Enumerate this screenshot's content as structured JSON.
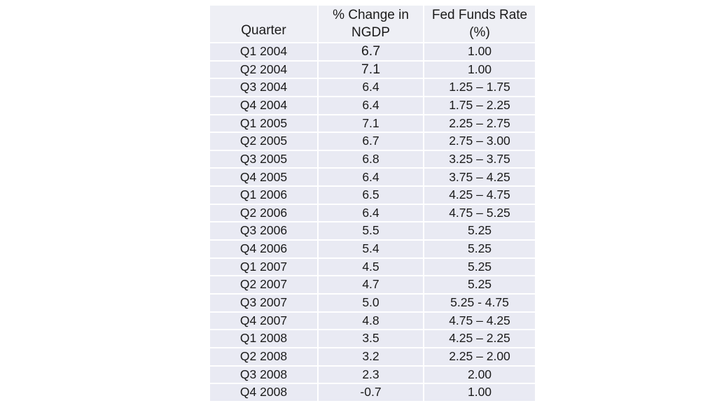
{
  "table": {
    "header": {
      "quarter": "Quarter",
      "ngdp_line1": "% Change in",
      "ngdp_line2": "NGDP",
      "rate_line1": "Fed Funds Rate",
      "rate_line2": "(%)"
    },
    "rows": [
      {
        "quarter": "Q1 2004",
        "ngdp": "6.7",
        "rate": "1.00"
      },
      {
        "quarter": "Q2 2004",
        "ngdp": "7.1",
        "rate": "1.00"
      },
      {
        "quarter": "Q3 2004",
        "ngdp": "6.4",
        "rate": "1.25 – 1.75"
      },
      {
        "quarter": "Q4 2004",
        "ngdp": "6.4",
        "rate": "1.75 – 2.25"
      },
      {
        "quarter": "Q1 2005",
        "ngdp": "7.1",
        "rate": "2.25 – 2.75"
      },
      {
        "quarter": "Q2 2005",
        "ngdp": "6.7",
        "rate": "2.75 – 3.00"
      },
      {
        "quarter": "Q3 2005",
        "ngdp": "6.8",
        "rate": "3.25 – 3.75"
      },
      {
        "quarter": "Q4 2005",
        "ngdp": "6.4",
        "rate": "3.75 – 4.25"
      },
      {
        "quarter": "Q1 2006",
        "ngdp": "6.5",
        "rate": "4.25 – 4.75"
      },
      {
        "quarter": "Q2 2006",
        "ngdp": "6.4",
        "rate": "4.75 – 5.25"
      },
      {
        "quarter": "Q3 2006",
        "ngdp": "5.5",
        "rate": "5.25"
      },
      {
        "quarter": "Q4 2006",
        "ngdp": "5.4",
        "rate": "5.25"
      },
      {
        "quarter": "Q1 2007",
        "ngdp": "4.5",
        "rate": "5.25"
      },
      {
        "quarter": "Q2 2007",
        "ngdp": "4.7",
        "rate": "5.25"
      },
      {
        "quarter": "Q3 2007",
        "ngdp": "5.0",
        "rate": "5.25 - 4.75"
      },
      {
        "quarter": "Q4 2007",
        "ngdp": "4.8",
        "rate": "4.75 – 4.25"
      },
      {
        "quarter": "Q1 2008",
        "ngdp": "3.5",
        "rate": "4.25 – 2.25"
      },
      {
        "quarter": "Q2 2008",
        "ngdp": "3.2",
        "rate": "2.25 – 2.00"
      },
      {
        "quarter": "Q3 2008",
        "ngdp": "2.3",
        "rate": "2.00"
      },
      {
        "quarter": "Q4 2008",
        "ngdp": "-0.7",
        "rate": "1.00"
      }
    ]
  },
  "colors": {
    "page_bg": "#FFFFFF",
    "row_bg": "#E9EAF3",
    "header_bg": "#EEEFF5",
    "separator": "#FFFFFF",
    "text": "#1B1B1B"
  },
  "chart_data": {
    "type": "table",
    "title": "",
    "columns": [
      "Quarter",
      "% Change in NGDP",
      "Fed Funds Rate (%)"
    ],
    "rows": [
      [
        "Q1 2004",
        6.7,
        "1.00"
      ],
      [
        "Q2 2004",
        7.1,
        "1.00"
      ],
      [
        "Q3 2004",
        6.4,
        "1.25 – 1.75"
      ],
      [
        "Q4 2004",
        6.4,
        "1.75 – 2.25"
      ],
      [
        "Q1 2005",
        7.1,
        "2.25 – 2.75"
      ],
      [
        "Q2 2005",
        6.7,
        "2.75 – 3.00"
      ],
      [
        "Q3 2005",
        6.8,
        "3.25 – 3.75"
      ],
      [
        "Q4 2005",
        6.4,
        "3.75 – 4.25"
      ],
      [
        "Q1 2006",
        6.5,
        "4.25 – 4.75"
      ],
      [
        "Q2 2006",
        6.4,
        "4.75 – 5.25"
      ],
      [
        "Q3 2006",
        5.5,
        "5.25"
      ],
      [
        "Q4 2006",
        5.4,
        "5.25"
      ],
      [
        "Q1 2007",
        4.5,
        "5.25"
      ],
      [
        "Q2 2007",
        4.7,
        "5.25"
      ],
      [
        "Q3 2007",
        5.0,
        "5.25 - 4.75"
      ],
      [
        "Q4 2007",
        4.8,
        "4.75 – 4.25"
      ],
      [
        "Q1 2008",
        3.5,
        "4.25 – 2.25"
      ],
      [
        "Q2 2008",
        3.2,
        "2.25 – 2.00"
      ],
      [
        "Q3 2008",
        2.3,
        "2.00"
      ],
      [
        "Q4 2008",
        -0.7,
        "1.00"
      ]
    ]
  }
}
